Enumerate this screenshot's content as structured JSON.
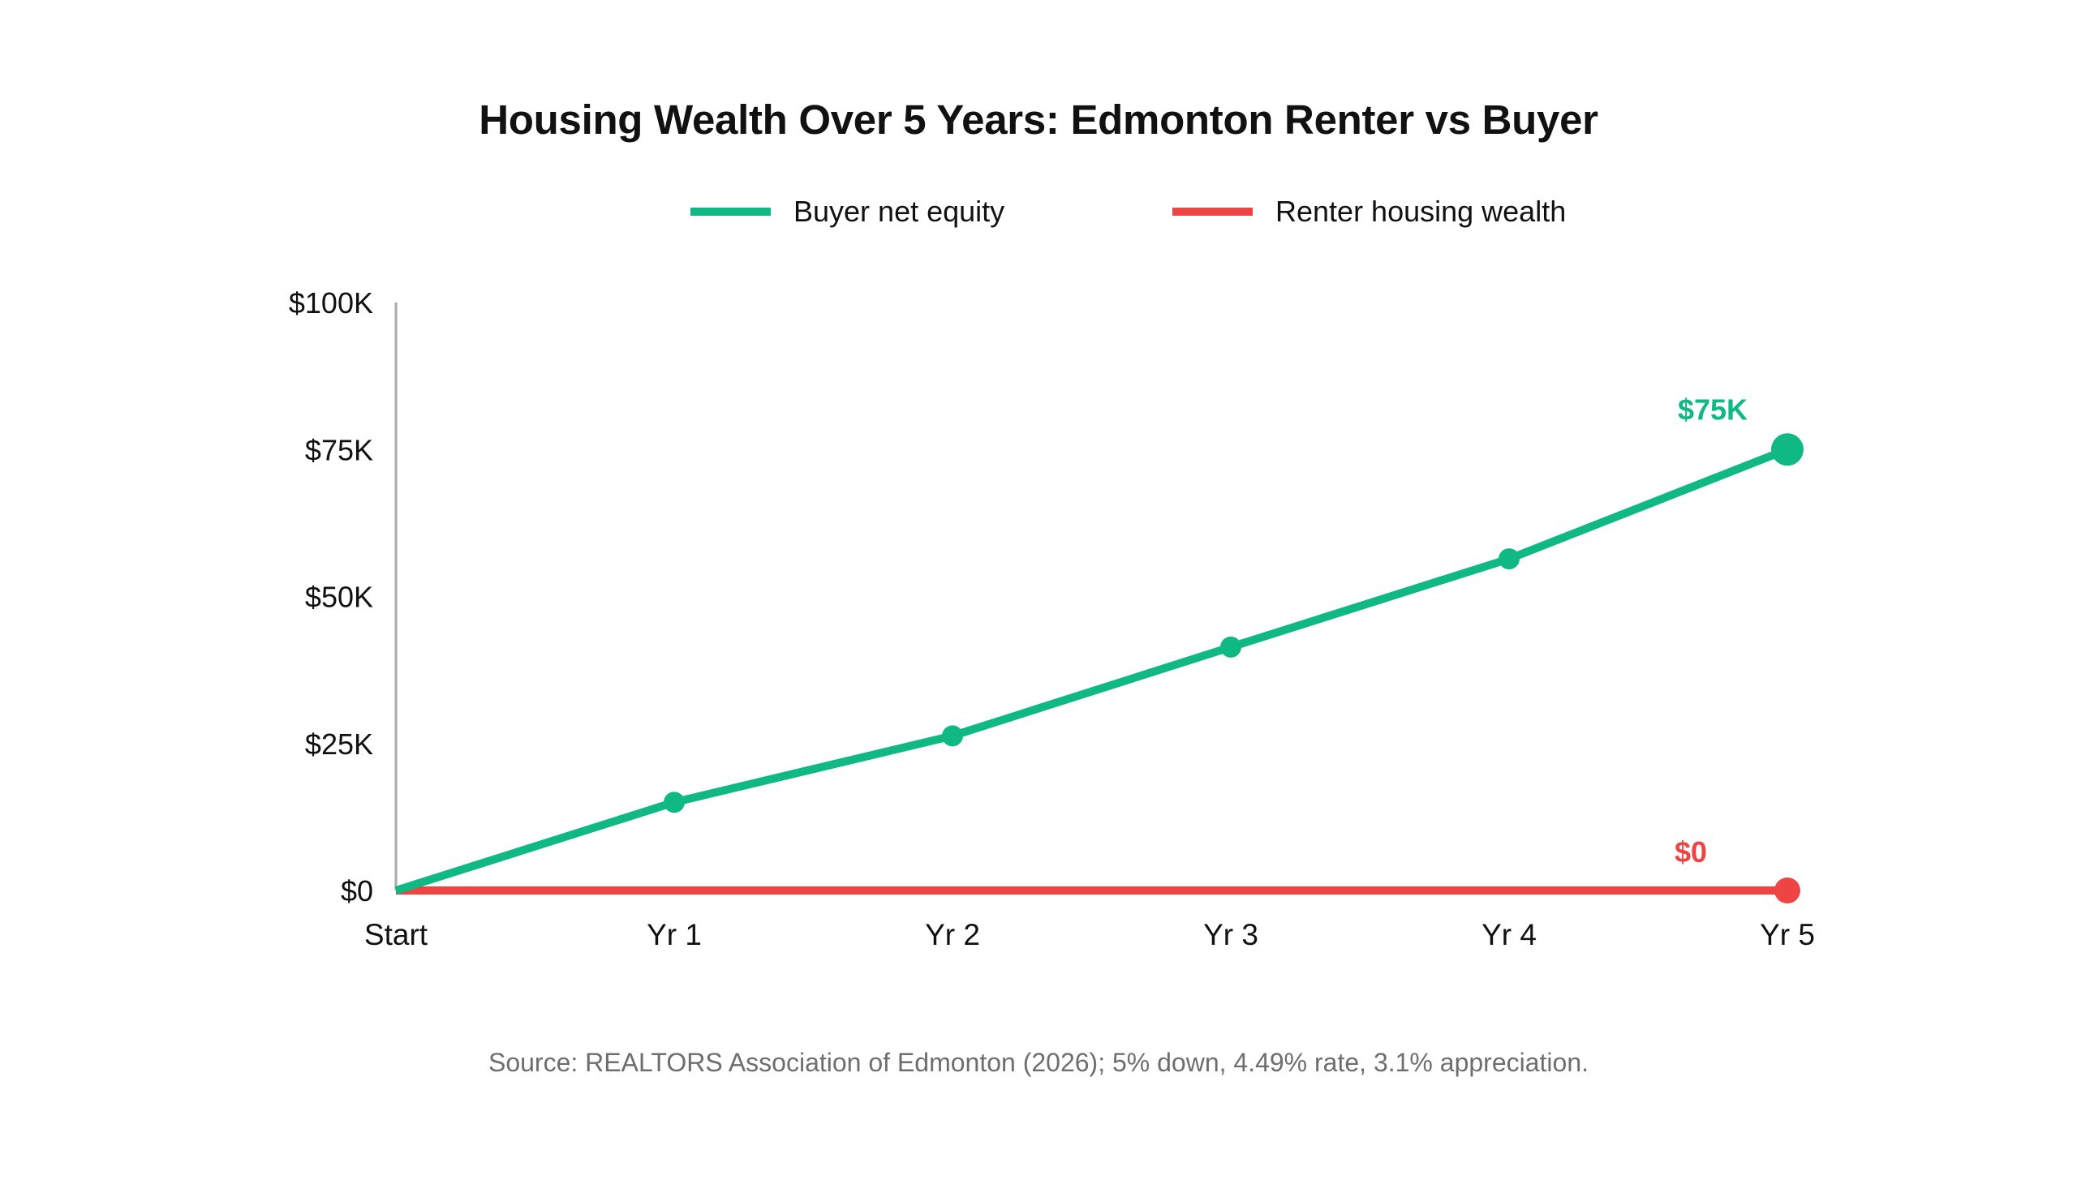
{
  "title": "Housing Wealth Over 5 Years: Edmonton Renter vs Buyer",
  "legend": [
    {
      "label": "Buyer net equity",
      "color": "#10b981"
    },
    {
      "label": "Renter housing wealth",
      "color": "#ef4444"
    }
  ],
  "source": "Source: REALTORS Association of Edmonton (2026); 5% down, 4.49% rate, 3.1% appreciation.",
  "colors": {
    "buyer": "#10b981",
    "renter": "#ef4444",
    "axis": "#aaaaaa",
    "text": "#111111",
    "source_text": "#6e6e6e"
  },
  "chart_data": {
    "type": "line",
    "title": "Housing Wealth Over 5 Years: Edmonton Renter vs Buyer",
    "xlabel": "",
    "ylabel": "",
    "categories": [
      "Start",
      "Yr 1",
      "Yr 2",
      "Yr 3",
      "Yr 4",
      "Yr 5"
    ],
    "series": [
      {
        "name": "Buyer net equity",
        "color": "#10b981",
        "values": [
          0,
          15000,
          26300,
          41400,
          56400,
          75000
        ],
        "end_label": "$75K"
      },
      {
        "name": "Renter housing wealth",
        "color": "#ef4444",
        "values": [
          0,
          0,
          0,
          0,
          0,
          0
        ],
        "end_label": "$0"
      }
    ],
    "yticks": [
      0,
      25000,
      50000,
      75000,
      100000
    ],
    "ytick_labels": [
      "$0",
      "$25K",
      "$50K",
      "$75K",
      "$100K"
    ],
    "ylim": [
      0,
      100000
    ],
    "grid": false,
    "legend_position": "top"
  }
}
